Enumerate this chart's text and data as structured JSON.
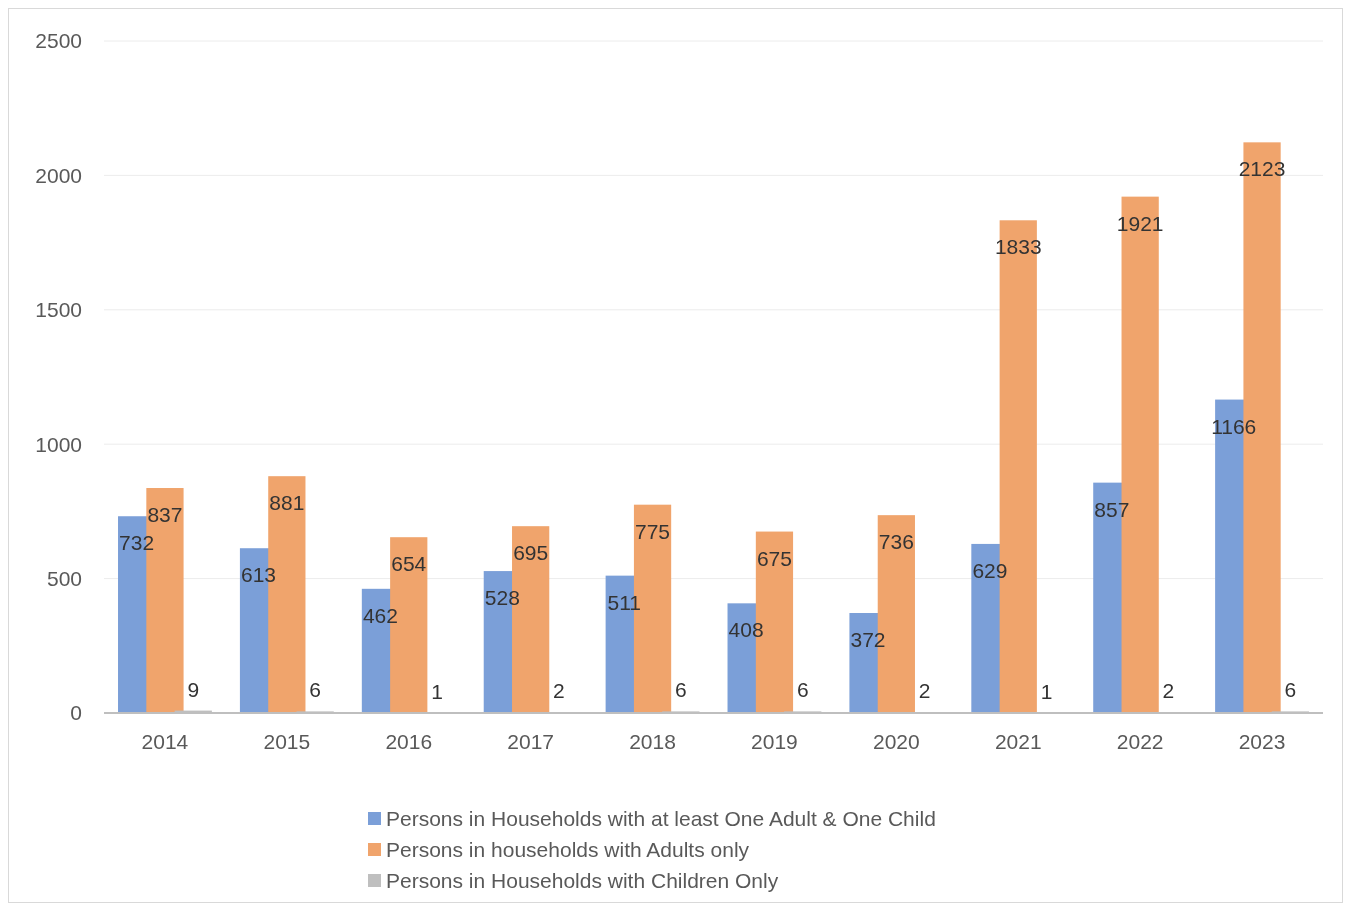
{
  "chart_data": {
    "type": "bar",
    "categories": [
      "2014",
      "2015",
      "2016",
      "2017",
      "2018",
      "2019",
      "2020",
      "2021",
      "2022",
      "2023"
    ],
    "series": [
      {
        "name": "Persons in Households with at least One Adult & One Child",
        "color": "#7b9fd8",
        "values": [
          732,
          613,
          462,
          528,
          511,
          408,
          372,
          629,
          857,
          1166
        ]
      },
      {
        "name": "Persons in households with Adults only",
        "color": "#f0a46c",
        "values": [
          837,
          881,
          654,
          695,
          775,
          675,
          736,
          1833,
          1921,
          2123
        ]
      },
      {
        "name": "Persons in Households with Children Only",
        "color": "#bfbfbf",
        "values": [
          9,
          6,
          1,
          2,
          6,
          6,
          2,
          1,
          2,
          6
        ]
      }
    ],
    "ylim": [
      0,
      2500
    ],
    "yticks": [
      0,
      500,
      1000,
      1500,
      2000,
      2500
    ],
    "grid": "y",
    "legend": "bottom",
    "data_labels": true
  }
}
